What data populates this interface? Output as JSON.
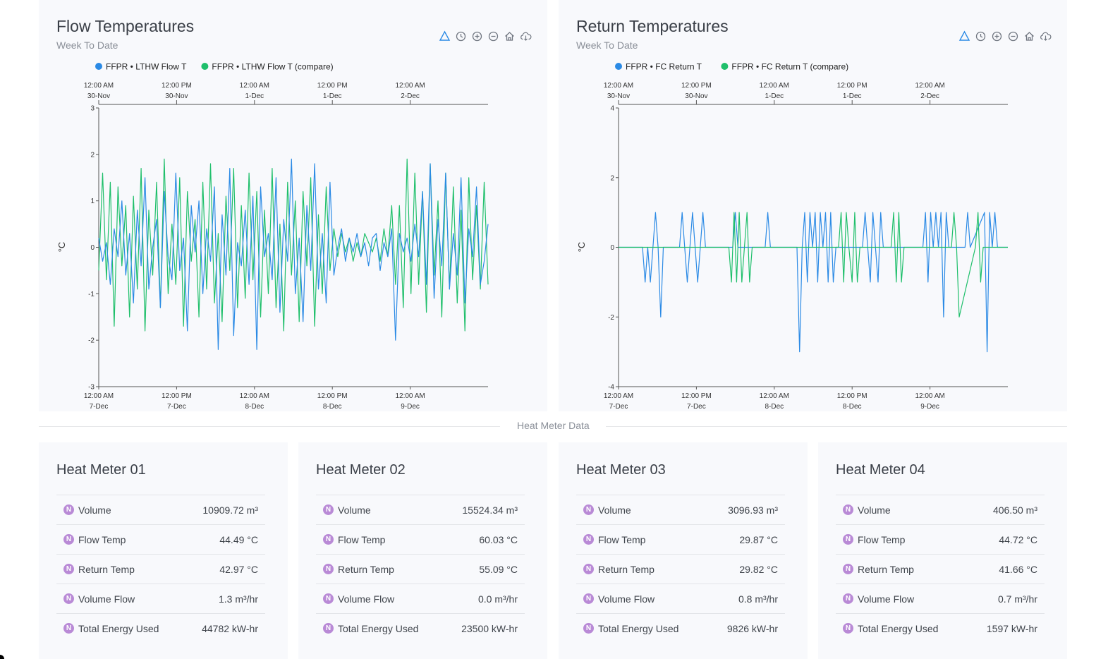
{
  "colors": {
    "series_a": "#2b8ae5",
    "series_b": "#1fbf6b",
    "badge": "#b98ad6",
    "toolbar_accent": "#2b8ae5",
    "toolbar": "#707680"
  },
  "toolbar_icons": [
    "selection-icon",
    "history-icon",
    "zoom-in-icon",
    "zoom-out-icon",
    "home-icon",
    "download-icon"
  ],
  "charts": [
    {
      "title": "Flow Temperatures",
      "subtitle": "Week To Date",
      "chart_data": {
        "type": "line",
        "ylabel": "°C",
        "ylim": [
          -3,
          3
        ],
        "yticks": [
          -3,
          -2,
          -1,
          0,
          1,
          2,
          3
        ],
        "grid": false,
        "legend_position": "top-left",
        "x_bottom_ticks": [
          {
            "time": "12:00 AM",
            "date": "7-Dec"
          },
          {
            "time": "12:00 PM",
            "date": "7-Dec"
          },
          {
            "time": "12:00 AM",
            "date": "8-Dec"
          },
          {
            "time": "12:00 PM",
            "date": "8-Dec"
          },
          {
            "time": "12:00 AM",
            "date": "9-Dec"
          }
        ],
        "x_top_ticks": [
          {
            "time": "12:00 AM",
            "date": "30-Nov"
          },
          {
            "time": "12:00 PM",
            "date": "30-Nov"
          },
          {
            "time": "12:00 AM",
            "date": "1-Dec"
          },
          {
            "time": "12:00 PM",
            "date": "1-Dec"
          },
          {
            "time": "12:00 AM",
            "date": "2-Dec"
          }
        ],
        "x_range_hours": [
          0,
          60
        ],
        "series": [
          {
            "name": "FFPR • LTHW Flow T",
            "values": [
              0.2,
              -0.3,
              0.1,
              -0.8,
              0.4,
              -0.2,
              1.0,
              -0.6,
              0.3,
              -1.2,
              0.8,
              -0.4,
              1.5,
              -0.9,
              0.0,
              0.6,
              -1.3,
              1.2,
              -0.2,
              -0.7,
              1.6,
              -0.5,
              0.2,
              -1.8,
              0.9,
              -0.1,
              1.0,
              -1.0,
              0.4,
              -0.3,
              1.3,
              -2.2,
              0.7,
              -0.6,
              1.7,
              -1.9,
              0.1,
              -0.4,
              0.8,
              -0.8,
              1.1,
              -2.2,
              1.3,
              -0.2,
              0.3,
              -0.7,
              1.5,
              -1.4,
              0.6,
              -0.3,
              1.9,
              -1.0,
              0.2,
              -1.6,
              0.9,
              -0.5,
              1.8,
              -0.9,
              0.3,
              -1.2,
              1.4,
              -0.6,
              0.0,
              0.4,
              -0.3,
              0.2,
              -0.1,
              0.3,
              -0.2,
              0.1,
              -0.4,
              0.2,
              0.3,
              -0.5,
              0.1,
              -0.2,
              0.4,
              -2.0,
              0.3,
              -0.1,
              0.2,
              -0.3,
              0.5,
              -0.2,
              1.2,
              -0.8,
              1.8,
              -1.1,
              0.6,
              -0.4,
              1.6,
              -0.9,
              0.3,
              -0.6,
              1.5,
              -1.2,
              0.4,
              -0.2,
              1.3,
              -0.8,
              -0.3,
              0.5
            ],
            "color": "#2b8ae5"
          },
          {
            "name": "FFPR • LTHW Flow T (compare)",
            "values": [
              -0.5,
              1.6,
              -0.7,
              1.4,
              -1.7,
              1.3,
              -0.4,
              0.9,
              -1.5,
              1.1,
              -0.9,
              1.7,
              -1.8,
              0.8,
              -0.6,
              1.4,
              -1.3,
              1.9,
              -1.0,
              0.5,
              -0.8,
              1.5,
              -1.7,
              1.2,
              -0.3,
              0.6,
              -1.5,
              1.4,
              -0.9,
              1.8,
              -1.2,
              0.3,
              -1.6,
              1.1,
              -0.5,
              1.7,
              -1.3,
              0.9,
              -1.1,
              1.6,
              -0.7,
              1.2,
              -1.5,
              0.8,
              -1.0,
              1.7,
              -1.3,
              0.5,
              -1.8,
              1.4,
              -0.6,
              1.0,
              -1.6,
              1.2,
              -0.4,
              1.5,
              -1.7,
              0.7,
              -1.0,
              1.3,
              -0.5,
              0.4,
              -0.2,
              0.3,
              -0.1,
              0.2,
              -0.3,
              0.1,
              -0.2,
              0.3,
              0.1,
              -0.1,
              0.2,
              -0.3,
              0.4,
              -0.2,
              0.9,
              -0.8,
              0.9,
              -1.3,
              1.9,
              -1.0,
              1.6,
              -0.8,
              1.2,
              -1.4,
              1.8,
              -0.6,
              1.0,
              -1.5,
              1.6,
              -0.9,
              1.3,
              -1.2,
              0.8,
              -1.8,
              1.5,
              -0.7,
              0.9,
              -0.9,
              1.4,
              -0.8
            ],
            "color": "#1fbf6b"
          }
        ]
      }
    },
    {
      "title": "Return Temperatures",
      "subtitle": "Week To Date",
      "chart_data": {
        "type": "line",
        "ylabel": "°C",
        "ylim": [
          -4,
          4
        ],
        "yticks": [
          -4,
          -2,
          0,
          2,
          4
        ],
        "grid": false,
        "legend_position": "top-left",
        "x_bottom_ticks": [
          {
            "time": "12:00 AM",
            "date": "7-Dec"
          },
          {
            "time": "12:00 PM",
            "date": "7-Dec"
          },
          {
            "time": "12:00 AM",
            "date": "8-Dec"
          },
          {
            "time": "12:00 PM",
            "date": "8-Dec"
          },
          {
            "time": "12:00 AM",
            "date": "9-Dec"
          }
        ],
        "x_top_ticks": [
          {
            "time": "12:00 AM",
            "date": "30-Nov"
          },
          {
            "time": "12:00 PM",
            "date": "30-Nov"
          },
          {
            "time": "12:00 AM",
            "date": "1-Dec"
          },
          {
            "time": "12:00 PM",
            "date": "1-Dec"
          },
          {
            "time": "12:00 AM",
            "date": "2-Dec"
          }
        ],
        "x_range_hours": [
          0,
          60
        ],
        "series": [
          {
            "name": "FFPR • FC Return T",
            "x": [
              0,
              3.7,
              4.1,
              4.5,
              4.9,
              5.3,
              5.7,
              6.1,
              6.5,
              6.9,
              7.3,
              9.4,
              9.8,
              10.2,
              10.6,
              11.0,
              11.4,
              11.8,
              12.2,
              12.6,
              13.0,
              13.4,
              13.8,
              17.6,
              18.0,
              18.4,
              22.6,
              23.0,
              23.4,
              27.5,
              27.9,
              28.3,
              28.7,
              29.1,
              29.5,
              29.9,
              30.3,
              30.7,
              31.1,
              31.5,
              31.9,
              32.3,
              32.7,
              33.1,
              33.5,
              37.6,
              38.0,
              38.4,
              38.8,
              39.2,
              39.6,
              40.0,
              40.4,
              40.8,
              46.9,
              47.3,
              47.7,
              48.1,
              48.5,
              48.9,
              49.3,
              49.7,
              50.1,
              50.5,
              50.9,
              53.4,
              53.8,
              54.2,
              56.4,
              56.8,
              57.2,
              57.6,
              58.0,
              58.4,
              60
            ],
            "values": [
              0,
              0,
              -1,
              0,
              -1,
              0,
              1,
              0,
              -2,
              0,
              0,
              0,
              1,
              0,
              -1,
              0,
              1,
              0,
              -1,
              0,
              1,
              0,
              0,
              0,
              1,
              0,
              0,
              1,
              0,
              0,
              -3,
              0,
              1,
              -1,
              1,
              0,
              1,
              -1,
              1,
              0,
              1,
              -1,
              1,
              -1,
              0,
              0,
              1,
              0,
              -1,
              1,
              0,
              -1,
              1,
              0,
              0,
              1,
              -1,
              1,
              0,
              1,
              0,
              1,
              -2,
              1,
              0,
              0,
              1,
              0,
              1,
              -3,
              1,
              0,
              1,
              0,
              0
            ],
            "color": "#2b8ae5"
          },
          {
            "name": "FFPR • FC Return T (compare)",
            "x": [
              0,
              17.0,
              17.4,
              17.8,
              18.2,
              18.6,
              19.0,
              19.4,
              19.8,
              20.2,
              20.6,
              33.9,
              34.3,
              34.7,
              35.1,
              35.5,
              36.0,
              36.4,
              36.8,
              37.2,
              42.0,
              42.4,
              42.8,
              43.2,
              43.6,
              44.0,
              51.3,
              51.7,
              52.1,
              52.5,
              55.0,
              55.4,
              55.8,
              56.2,
              60
            ],
            "values": [
              0,
              0,
              -1,
              1,
              -1,
              1,
              -1,
              0,
              1,
              -1,
              0,
              0,
              1,
              -1,
              1,
              0,
              -1,
              1,
              -1,
              0,
              0,
              1,
              -1,
              1,
              -1,
              0,
              0,
              1,
              0,
              -2,
              0,
              1,
              -1,
              0,
              0
            ],
            "color": "#1fbf6b"
          }
        ]
      }
    }
  ],
  "section_divider": "Heat Meter Data",
  "meters": [
    {
      "title": "Heat Meter 01",
      "badge": "N",
      "rows": [
        {
          "label": "Volume",
          "value": "10909.72 m³"
        },
        {
          "label": "Flow Temp",
          "value": "44.49 °C"
        },
        {
          "label": "Return Temp",
          "value": "42.97 °C"
        },
        {
          "label": "Volume Flow",
          "value": "1.3 m³/hr"
        },
        {
          "label": "Total Energy Used",
          "value": "44782 kW-hr"
        }
      ]
    },
    {
      "title": "Heat Meter 02",
      "badge": "N",
      "rows": [
        {
          "label": "Volume",
          "value": "15524.34 m³"
        },
        {
          "label": "Flow Temp",
          "value": "60.03 °C"
        },
        {
          "label": "Return Temp",
          "value": "55.09 °C"
        },
        {
          "label": "Volume Flow",
          "value": "0.0 m³/hr"
        },
        {
          "label": "Total Energy Used",
          "value": "23500 kW-hr"
        }
      ]
    },
    {
      "title": "Heat Meter 03",
      "badge": "N",
      "rows": [
        {
          "label": "Volume",
          "value": "3096.93 m³"
        },
        {
          "label": "Flow Temp",
          "value": "29.87 °C"
        },
        {
          "label": "Return Temp",
          "value": "29.82 °C"
        },
        {
          "label": "Volume Flow",
          "value": "0.8 m³/hr"
        },
        {
          "label": "Total Energy Used",
          "value": "9826 kW-hr"
        }
      ]
    },
    {
      "title": "Heat Meter 04",
      "badge": "N",
      "rows": [
        {
          "label": "Volume",
          "value": "406.50 m³"
        },
        {
          "label": "Flow Temp",
          "value": "44.72 °C"
        },
        {
          "label": "Return Temp",
          "value": "41.66 °C"
        },
        {
          "label": "Volume Flow",
          "value": "0.7 m³/hr"
        },
        {
          "label": "Total Energy Used",
          "value": "1597 kW-hr"
        }
      ]
    }
  ]
}
